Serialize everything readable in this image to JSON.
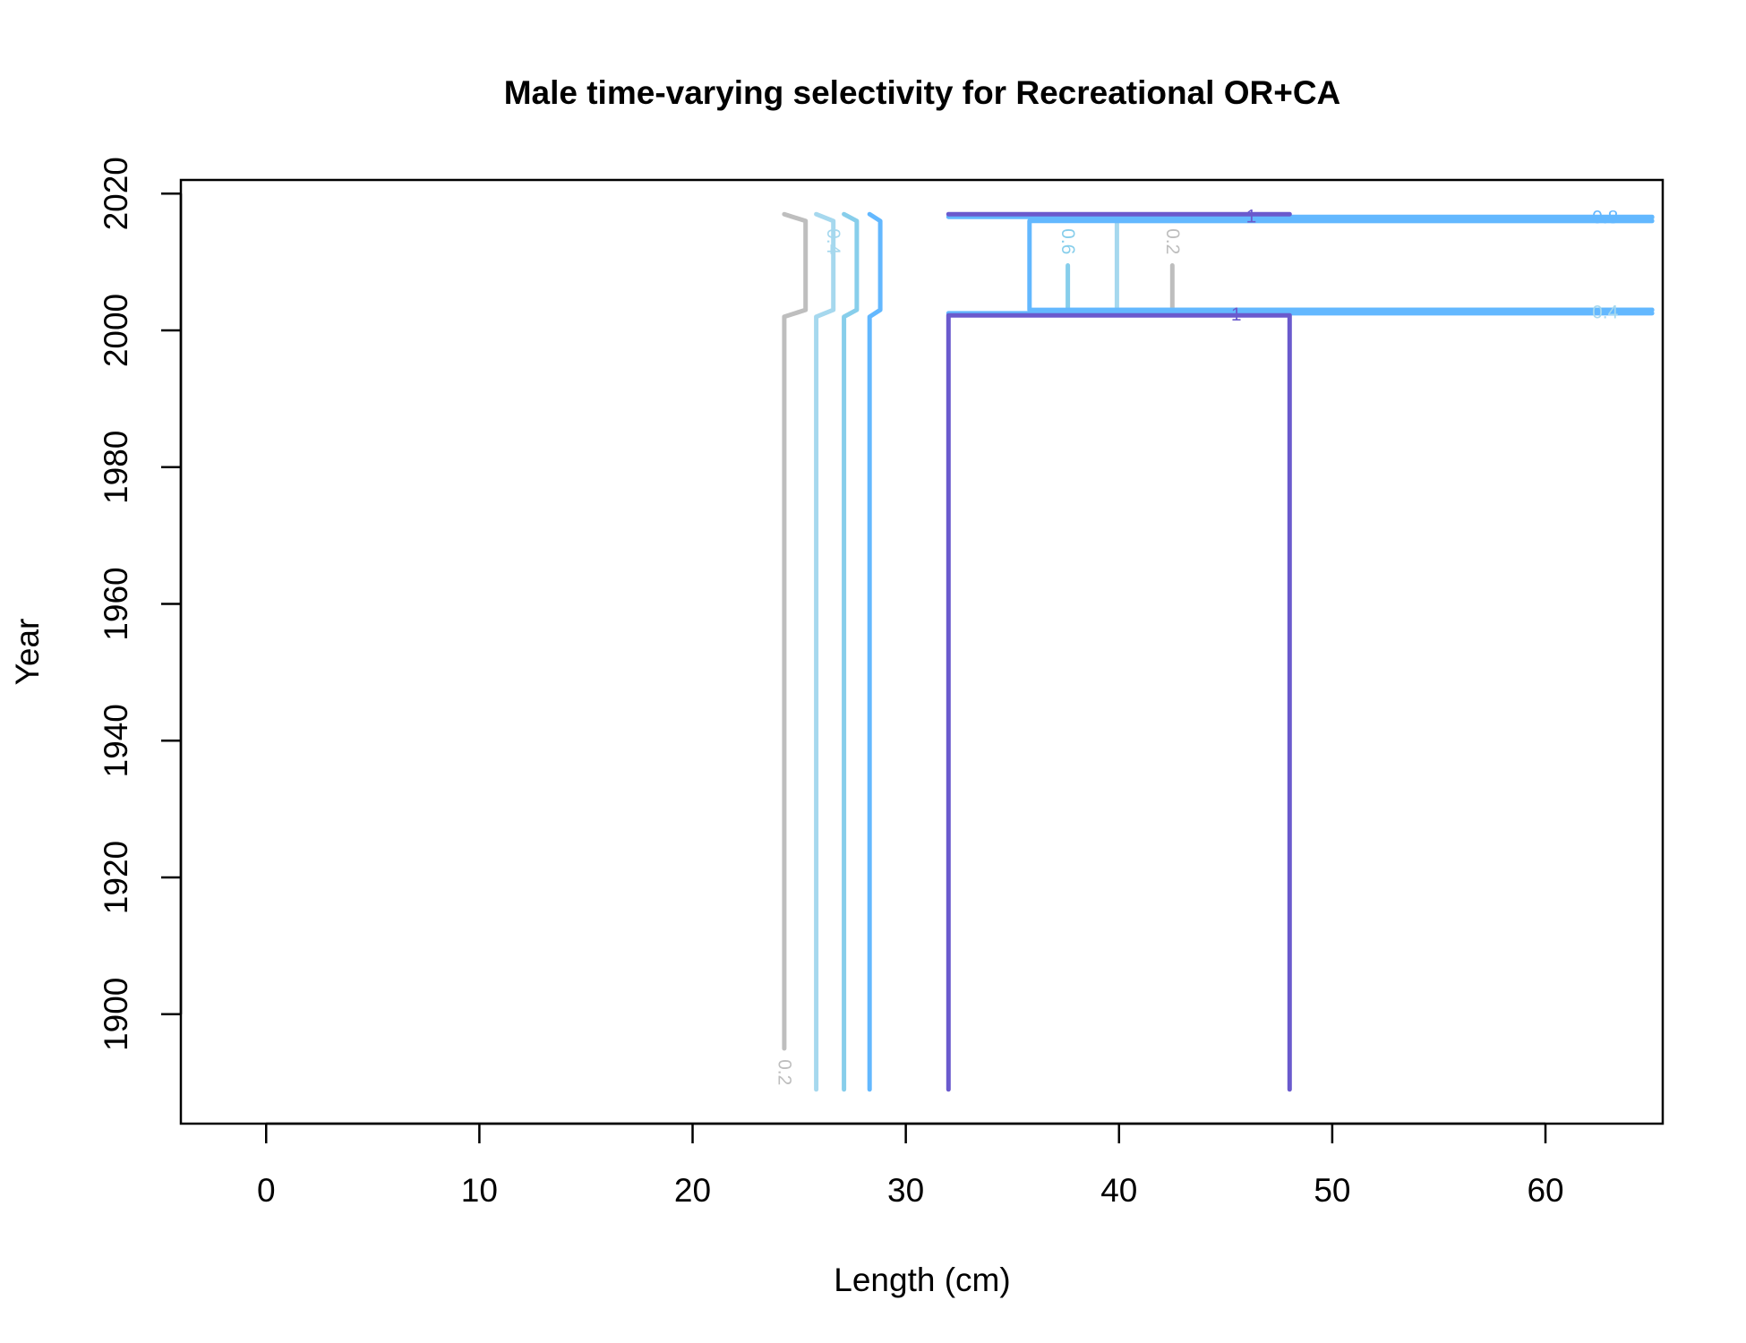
{
  "chart_data": {
    "type": "line",
    "title": "Male time-varying selectivity for Recreational OR+CA",
    "xlabel": "Length (cm)",
    "ylabel": "Year",
    "xlim": [
      -4,
      65.5
    ],
    "ylim": [
      1884,
      2022
    ],
    "x_ticks": [
      0,
      10,
      20,
      30,
      40,
      50,
      60
    ],
    "y_ticks": [
      1900,
      1920,
      1940,
      1960,
      1980,
      2000,
      2020
    ],
    "x_tick_labels": [
      "0",
      "10",
      "20",
      "30",
      "40",
      "50",
      "60"
    ],
    "y_tick_labels": [
      "1900",
      "1920",
      "1940",
      "1960",
      "1980",
      "2000",
      "2020"
    ],
    "grid": false,
    "legend": "none",
    "series": [
      {
        "level": "0.2",
        "color": "#BEBEBE",
        "segments": [
          [
            [
              24.3,
              1895
            ],
            [
              24.3,
              2002
            ],
            [
              25.3,
              2003
            ],
            [
              25.3,
              2016
            ],
            [
              24.3,
              2017
            ]
          ],
          [
            [
              42.5,
              2009.5
            ],
            [
              42.5,
              2003
            ],
            [
              65,
              2003
            ]
          ],
          [
            [
              42.5,
              2016.5
            ],
            [
              65,
              2016.5
            ]
          ]
        ]
      },
      {
        "level": "0.4",
        "color": "#A6D8EE",
        "segments": [
          [
            [
              25.8,
              1889
            ],
            [
              25.8,
              2002
            ],
            [
              26.6,
              2003
            ],
            [
              26.6,
              2016
            ],
            [
              25.8,
              2017
            ]
          ],
          [
            [
              39.9,
              2003
            ],
            [
              39.9,
              2016
            ],
            [
              65,
              2016
            ]
          ],
          [
            [
              39.9,
              2003
            ],
            [
              65,
              2003
            ]
          ]
        ]
      },
      {
        "level": "0.6",
        "color": "#87CEEB",
        "segments": [
          [
            [
              27.1,
              1889
            ],
            [
              27.1,
              2002
            ],
            [
              27.7,
              2003
            ],
            [
              27.7,
              2016
            ],
            [
              27.1,
              2017
            ]
          ],
          [
            [
              37.6,
              2009.5
            ],
            [
              37.6,
              2003
            ],
            [
              65,
              2003
            ]
          ],
          [
            [
              37.6,
              2016.5
            ],
            [
              65,
              2016.5
            ]
          ]
        ]
      },
      {
        "level": "0.8",
        "color": "#63B8FF",
        "segments": [
          [
            [
              28.3,
              1889
            ],
            [
              28.3,
              2002
            ],
            [
              28.8,
              2003
            ],
            [
              28.8,
              2016
            ],
            [
              28.3,
              2017
            ]
          ],
          [
            [
              65,
              2016
            ],
            [
              35.8,
              2016
            ],
            [
              35.8,
              2003
            ],
            [
              65,
              2003
            ]
          ],
          [
            [
              32.0,
              2016.6
            ],
            [
              65,
              2016.6
            ]
          ],
          [
            [
              32.0,
              2002.5
            ],
            [
              65,
              2002.5
            ]
          ]
        ]
      },
      {
        "level": "1",
        "color": "#6A5ACD",
        "segments": [
          [
            [
              32.0,
              1889
            ],
            [
              32.0,
              2002.2
            ],
            [
              48.0,
              2002.2
            ],
            [
              48.0,
              1889
            ]
          ],
          [
            [
              32.0,
              2017
            ],
            [
              48.0,
              2017
            ]
          ]
        ]
      }
    ],
    "contour_labels": [
      {
        "text": "0.2",
        "x": 24.3,
        "y": 1891.5,
        "rotate": 90,
        "color": "#BEBEBE"
      },
      {
        "text": "0.4",
        "x": 26.6,
        "y": 2013,
        "rotate": 90,
        "color": "#A6D8EE"
      },
      {
        "text": "0.6",
        "x": 37.6,
        "y": 2013,
        "rotate": 90,
        "color": "#87CEEB"
      },
      {
        "text": "0.2",
        "x": 42.5,
        "y": 2013,
        "rotate": 90,
        "color": "#BEBEBE"
      },
      {
        "text": "1",
        "x": 46.2,
        "y": 2016.6,
        "rotate": 0,
        "color": "#6A5ACD"
      },
      {
        "text": "1",
        "x": 45.5,
        "y": 2002.3,
        "rotate": 0,
        "color": "#6A5ACD"
      },
      {
        "text": "0.8",
        "x": 62.8,
        "y": 2016.5,
        "rotate": 0,
        "color": "#63B8FF"
      },
      {
        "text": "0.4",
        "x": 62.8,
        "y": 2002.6,
        "rotate": 0,
        "color": "#A6D8EE"
      }
    ]
  }
}
